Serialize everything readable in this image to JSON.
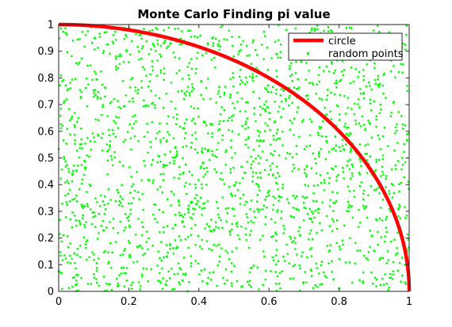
{
  "chart_data": {
    "type": "scatter",
    "title": "Monte Carlo Finding pi value",
    "xlabel": "",
    "ylabel": "",
    "xlim": [
      0,
      1
    ],
    "ylim": [
      0,
      1
    ],
    "x_ticks": [
      "0",
      "0.2",
      "0.4",
      "0.6",
      "0.8",
      "1"
    ],
    "y_ticks": [
      "0",
      "0.1",
      "0.2",
      "0.3",
      "0.4",
      "0.5",
      "0.6",
      "0.7",
      "0.8",
      "0.9",
      "1"
    ],
    "grid": false,
    "legend_position": "top-right",
    "series": [
      {
        "name": "circle",
        "kind": "line",
        "color": "#ff0000",
        "function": "y = sqrt(1 - x^2)",
        "x_range": [
          0,
          1
        ]
      },
      {
        "name": "random points",
        "kind": "points",
        "color": "#00ff00",
        "marker": "dot",
        "count": 2000,
        "distribution": "uniform",
        "x_range": [
          0,
          1
        ],
        "y_range": [
          0,
          1
        ]
      }
    ]
  }
}
